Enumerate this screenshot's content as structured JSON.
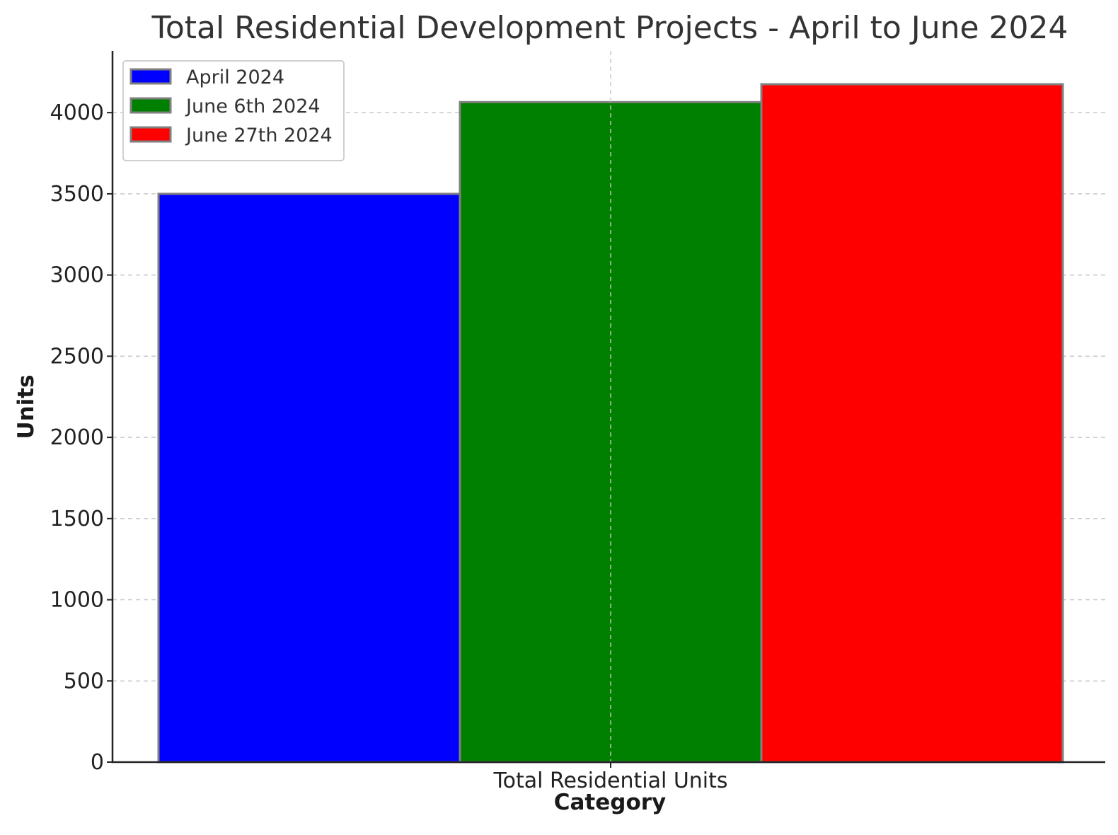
{
  "chart_data": {
    "type": "bar",
    "title": "Total Residential Development Projects - April to June 2024",
    "xlabel": "Category",
    "ylabel": "Units",
    "categories": [
      "Total Residential Units"
    ],
    "series": [
      {
        "name": "April 2024",
        "values": [
          3500
        ],
        "color": "#0000ff"
      },
      {
        "name": "June 6th 2024",
        "values": [
          4065
        ],
        "color": "#008000"
      },
      {
        "name": "June 27th 2024",
        "values": [
          4175
        ],
        "color": "#ff0000"
      }
    ],
    "yticks": [
      "0",
      "500",
      "1000",
      "1500",
      "2000",
      "2500",
      "3000",
      "3500",
      "4000"
    ],
    "ylim": [
      0,
      4380
    ],
    "grid": true,
    "legend_position": "top-left"
  }
}
